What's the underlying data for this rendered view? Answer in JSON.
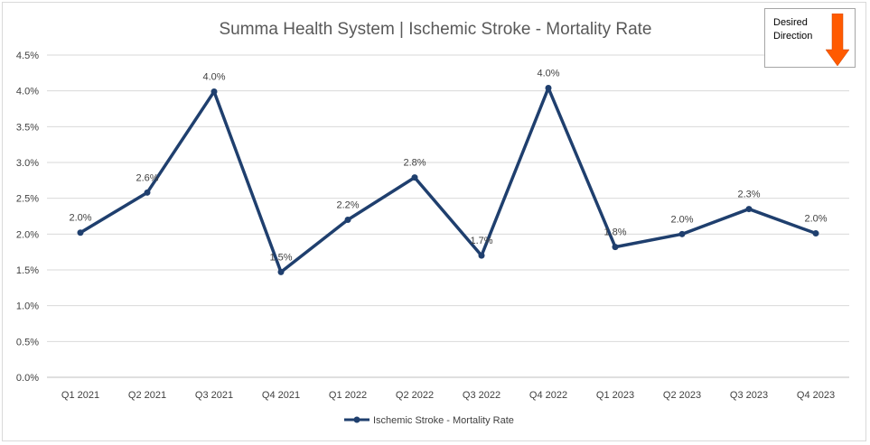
{
  "chart_data": {
    "type": "line",
    "title": "Summa Health System | Ischemic Stroke - Mortality Rate",
    "categories": [
      "Q1 2021",
      "Q2 2021",
      "Q3 2021",
      "Q4 2021",
      "Q1 2022",
      "Q2 2022",
      "Q3 2022",
      "Q4 2022",
      "Q1 2023",
      "Q2 2023",
      "Q3 2023",
      "Q4 2023"
    ],
    "series": [
      {
        "name": "Ischemic Stroke - Mortality Rate",
        "values": [
          0.0202,
          0.0258,
          0.0399,
          0.0147,
          0.022,
          0.0279,
          0.017,
          0.0404,
          0.0182,
          0.02,
          0.0235,
          0.0201
        ],
        "data_labels": [
          "2.0%",
          "2.6%",
          "4.0%",
          "1.5%",
          "2.2%",
          "2.8%",
          "1.7%",
          "4.0%",
          "1.8%",
          "2.0%",
          "2.3%",
          "2.0%"
        ],
        "color": "#1f3f6e"
      }
    ],
    "y_ticks": [
      "0.0%",
      "0.5%",
      "1.0%",
      "1.5%",
      "2.0%",
      "2.5%",
      "3.0%",
      "3.5%",
      "4.0%",
      "4.5%"
    ],
    "ylim": [
      0,
      0.045
    ],
    "grid": true,
    "legend_position": "bottom",
    "gridline_color": "#d9d9d9"
  },
  "annotation": {
    "text": "Desired Direction",
    "arrow_icon": "down-arrow-icon",
    "arrow_color": "#ff5a00"
  }
}
